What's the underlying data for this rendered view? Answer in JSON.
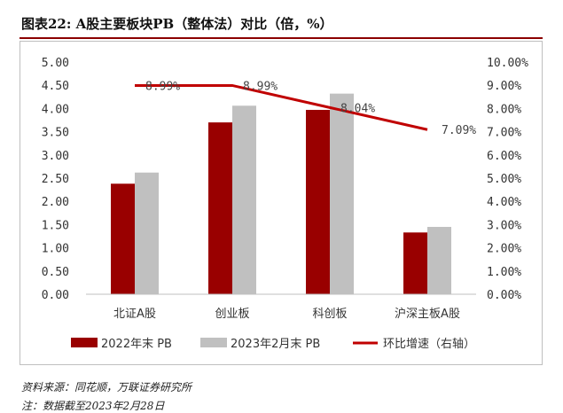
{
  "title": "图表22:  A股主要板块PB（整体法）对比（倍，%）",
  "source": "资料来源：同花顺，万联证券研究所",
  "note": "注：数据截至2023年2月28日",
  "chart_data": {
    "type": "bar",
    "categories": [
      "北证A股",
      "创业板",
      "科创板",
      "沪深主板A股"
    ],
    "series": [
      {
        "name": "2022年末 PB",
        "type": "bar",
        "axis": "left",
        "color": "#990000",
        "values": [
          2.38,
          3.7,
          3.97,
          1.33
        ]
      },
      {
        "name": "2023年2月末 PB",
        "type": "bar",
        "axis": "left",
        "color": "#c0c0c0",
        "values": [
          2.62,
          4.06,
          4.32,
          1.45
        ]
      },
      {
        "name": "环比增速（右轴）",
        "type": "line",
        "axis": "right",
        "color": "#c00000",
        "values": [
          8.99,
          8.99,
          8.04,
          7.09
        ],
        "labels": [
          "8.99%",
          "8.99%",
          "8.04%",
          "7.09%"
        ]
      }
    ],
    "y_left": {
      "min": 0,
      "max": 5,
      "ticks": [
        "0.00",
        "0.50",
        "1.00",
        "1.50",
        "2.00",
        "2.50",
        "3.00",
        "3.50",
        "4.00",
        "4.50",
        "5.00"
      ]
    },
    "y_right": {
      "min": 0,
      "max": 10,
      "ticks": [
        "0.00%",
        "1.00%",
        "2.00%",
        "3.00%",
        "4.00%",
        "5.00%",
        "6.00%",
        "7.00%",
        "8.00%",
        "9.00%",
        "10.00%"
      ]
    },
    "legend_position": "bottom",
    "grid": false
  }
}
